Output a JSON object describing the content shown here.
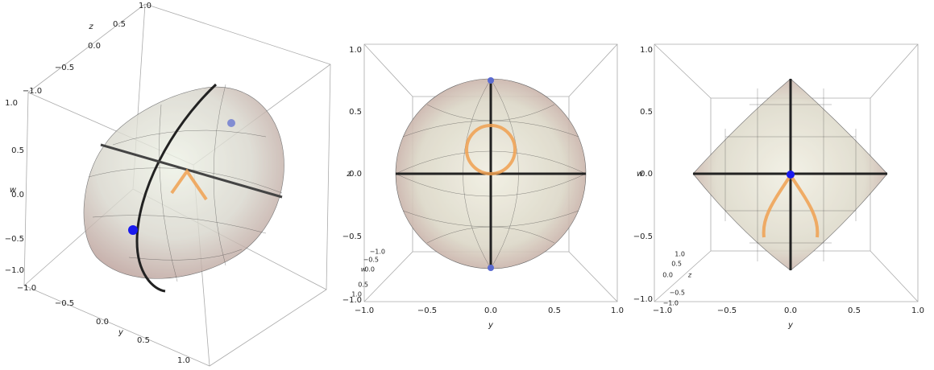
{
  "panels": [
    {
      "z": {
        "label": "z",
        "ticks": [
          "−1.0",
          "−0.5",
          "0.0",
          "0.5",
          "1.0"
        ]
      },
      "w": {
        "label": "w",
        "ticks": [
          "−1.0",
          "−0.5",
          "0.0",
          "0.5",
          "1.0"
        ]
      },
      "y": {
        "label": "y",
        "ticks": [
          "−1.0",
          "−0.5",
          "0.0",
          "0.5",
          "1.0"
        ]
      }
    },
    {
      "z": {
        "label": "z",
        "ticks": [
          "−1.0",
          "−0.5",
          "0.0",
          "0.5",
          "1.0"
        ]
      },
      "w": {
        "label": "w",
        "ticks": [
          "−1.0",
          "−0.5",
          "0.0",
          "0.5",
          "1.0"
        ]
      },
      "y": {
        "label": "y",
        "ticks": [
          "−1.0",
          "−0.5",
          "0.0",
          "0.5",
          "1.0"
        ]
      }
    },
    {
      "w": {
        "label": "w",
        "ticks": [
          "−1.0",
          "−0.5",
          "0.0",
          "0.5",
          "1.0"
        ]
      },
      "z": {
        "label": "z",
        "ticks": [
          "−1.0",
          "−0.5",
          "0.0",
          "0.5",
          "1.0"
        ]
      },
      "y": {
        "label": "y",
        "ticks": [
          "−1.0",
          "−0.5",
          "0.0",
          "0.5",
          "1.0"
        ]
      }
    }
  ]
}
